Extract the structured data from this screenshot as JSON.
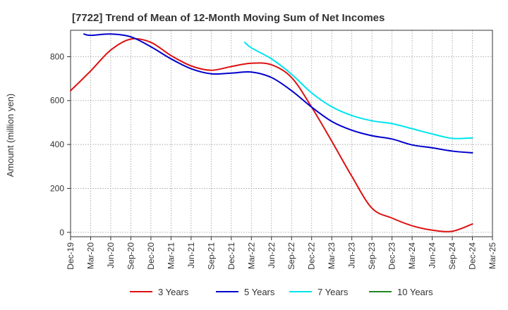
{
  "chart_data": {
    "type": "line",
    "title": "[7722]  Trend of Mean of 12-Month Moving Sum of Net Incomes",
    "xlabel": "",
    "ylabel": "Amount (million yen)",
    "ylim": [
      -20,
      920
    ],
    "yticks": [
      0,
      200,
      400,
      600,
      800
    ],
    "xtick_labels": [
      "Dec-19",
      "Mar-20",
      "Jun-20",
      "Sep-20",
      "Dec-20",
      "Mar-21",
      "Jun-21",
      "Sep-21",
      "Dec-21",
      "Mar-22",
      "Jun-22",
      "Sep-22",
      "Dec-22",
      "Mar-23",
      "Jun-23",
      "Sep-23",
      "Dec-23",
      "Mar-24",
      "Jun-24",
      "Sep-24",
      "Dec-24",
      "Mar-25"
    ],
    "grid": true,
    "legend_position": "bottom",
    "series": [
      {
        "name": "3 Years",
        "color": "#dd1111",
        "x": [
          0,
          1,
          2,
          3,
          4,
          5,
          6,
          7,
          8,
          9,
          10,
          11,
          12,
          13,
          14,
          15,
          16,
          17,
          18,
          19,
          20
        ],
        "values": [
          645,
          735,
          830,
          880,
          865,
          805,
          758,
          738,
          755,
          770,
          763,
          705,
          570,
          415,
          255,
          110,
          65,
          30,
          10,
          5,
          38
        ]
      },
      {
        "name": "5 Years",
        "color": "#0000cc",
        "x": [
          0.667,
          1,
          2,
          3,
          4,
          5,
          6,
          7,
          8,
          9,
          10,
          11,
          12,
          13,
          14,
          15,
          16,
          17,
          18,
          19,
          20
        ],
        "values": [
          903,
          897,
          903,
          890,
          845,
          790,
          745,
          722,
          725,
          730,
          705,
          645,
          570,
          505,
          465,
          440,
          425,
          398,
          385,
          370,
          362
        ]
      },
      {
        "name": "7 Years",
        "color": "#00e5ee",
        "x": [
          8.667,
          9,
          10,
          11,
          12,
          13,
          14,
          15,
          16,
          17,
          18,
          19,
          20
        ],
        "values": [
          865,
          840,
          790,
          720,
          635,
          572,
          532,
          508,
          495,
          472,
          448,
          428,
          430
        ]
      },
      {
        "name": "10 Years",
        "color": "#228822",
        "x": [],
        "values": []
      }
    ]
  }
}
